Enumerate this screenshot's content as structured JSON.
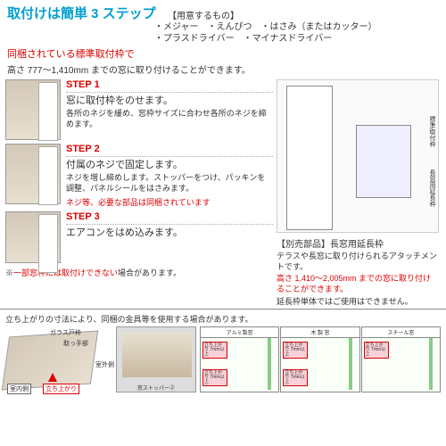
{
  "header": {
    "title": "取付けは簡単 3 ステップ",
    "prep_title": "【用意するもの】",
    "prep_line1": "・メジャー　・えんぴつ　・はさみ（またはカッター）",
    "prep_line2": "・プラスドライバー　・マイナスドライバー",
    "red_sub": "同梱されている標準取付枠で",
    "height_note": "高さ 777～1,410mm までの窓に取り付けることができます。"
  },
  "steps": [
    {
      "label": "STEP 1",
      "head": "窓に取付枠をのせます。",
      "body": "各所のネジを緩め、窓枠サイズに合わせ各所のネジを締めます。",
      "note": ""
    },
    {
      "label": "STEP 2",
      "head": "付属のネジで固定します。",
      "body": "ネジを増し締めします。ストッパーをつけ、パッキンを調整、パネルシールをはさみます。",
      "note": "ネジ等、必要な部品は同梱されています"
    },
    {
      "label": "STEP 3",
      "head": "エアコンをはめ込みます。",
      "body": "",
      "note": ""
    }
  ],
  "caution_pre": "※",
  "caution_red": "一部窓枠には取付けできない",
  "caution_post": "場合があります。",
  "right": {
    "dlabel1": "標準取付枠",
    "dlabel2": "長窓用延長枠",
    "access_title": "【別売部品】長窓用延長枠",
    "access_body": "テラスや長窓に取り付けられるアタッチメントです。",
    "access_red": "高さ 1,410～2,005mm までの窓に取り付けることができます。",
    "access_foot": "延長枠単体ではご使用はできません。"
  },
  "bottom": {
    "note": "立ち上がりの寸法により、同梱の金具等を使用する場合があります。",
    "iso": {
      "l1": "ガラス戸枠",
      "l2": "取っ手部",
      "l3": "室外側",
      "l4": "室内側",
      "l5": "立ち上がり"
    },
    "photo_cap": "窓ストッパー②",
    "cols": [
      {
        "head": "アルミ製窓"
      },
      {
        "head": "木 製 窓"
      },
      {
        "head": "スチール窓"
      }
    ],
    "pink_text": "立ち上がり\n7mm以上"
  }
}
